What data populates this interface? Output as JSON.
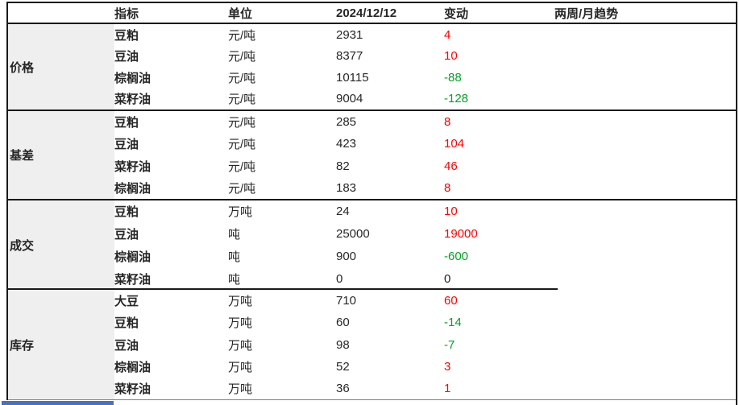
{
  "chart_data": {
    "type": "table",
    "columns": [
      "指标",
      "单位",
      "2024/12/12",
      "变动",
      "两周/月趋势"
    ],
    "sections": [
      {
        "group": "价格",
        "rows": [
          {
            "label": "豆粕",
            "unit": "元/吨",
            "value": "2931",
            "change": "4",
            "direction": "up"
          },
          {
            "label": "豆油",
            "unit": "元/吨",
            "value": "8377",
            "change": "10",
            "direction": "up"
          },
          {
            "label": "棕榈油",
            "unit": "元/吨",
            "value": "10115",
            "change": "-88",
            "direction": "down"
          },
          {
            "label": "菜籽油",
            "unit": "元/吨",
            "value": "9004",
            "change": "-128",
            "direction": "down"
          }
        ]
      },
      {
        "group": "基差",
        "rows": [
          {
            "label": "豆粕",
            "unit": "元/吨",
            "value": "285",
            "change": "8",
            "direction": "up"
          },
          {
            "label": "豆油",
            "unit": "元/吨",
            "value": "423",
            "change": "104",
            "direction": "up"
          },
          {
            "label": "菜籽油",
            "unit": "元/吨",
            "value": "82",
            "change": "46",
            "direction": "up"
          },
          {
            "label": "棕榈油",
            "unit": "元/吨",
            "value": "183",
            "change": "8",
            "direction": "up"
          }
        ]
      },
      {
        "group": "成交",
        "rows": [
          {
            "label": "豆粕",
            "unit": "万吨",
            "value": "24",
            "change": "10",
            "direction": "up"
          },
          {
            "label": "豆油",
            "unit": "吨",
            "value": "25000",
            "change": "19000",
            "direction": "up"
          },
          {
            "label": "棕榈油",
            "unit": "吨",
            "value": "900",
            "change": "-600",
            "direction": "down"
          },
          {
            "label": "菜籽油",
            "unit": "吨",
            "value": "0",
            "change": "0",
            "direction": "flat"
          }
        ]
      },
      {
        "group": "库存",
        "rows": [
          {
            "label": "大豆",
            "unit": "万吨",
            "value": "710",
            "change": "60",
            "direction": "up"
          },
          {
            "label": "豆粕",
            "unit": "万吨",
            "value": "60",
            "change": "-14",
            "direction": "down"
          },
          {
            "label": "豆油",
            "unit": "万吨",
            "value": "98",
            "change": "-7",
            "direction": "down"
          },
          {
            "label": "棕榈油",
            "unit": "万吨",
            "value": "52",
            "change": "3",
            "direction": "up"
          },
          {
            "label": "菜籽油",
            "unit": "万吨",
            "value": "36",
            "change": "1",
            "direction": "up"
          }
        ]
      }
    ]
  },
  "colors": {
    "positive_change": "#fe0000",
    "negative_change": "#00a221",
    "neutral_change": "#262626",
    "group_cell_background": "#efefef",
    "table_border": "#1a1a1a",
    "bottom_divider": "#808080",
    "bottom_bar": "#4472c4"
  }
}
